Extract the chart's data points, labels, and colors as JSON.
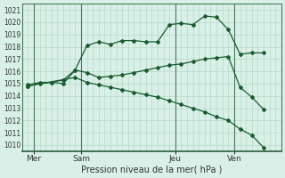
{
  "title": "Pression niveau de la mer( hPa )",
  "bg_color": "#d8f0e8",
  "grid_color": "#b8d8c8",
  "line_color": "#1a5c30",
  "ylim": [
    1009.5,
    1021.5
  ],
  "yticks": [
    1010,
    1011,
    1012,
    1013,
    1014,
    1015,
    1016,
    1017,
    1018,
    1019,
    1020,
    1021
  ],
  "day_labels": [
    "Mer",
    "Sam",
    "Jeu",
    "Ven"
  ],
  "total_x_pts": 22,
  "xlim": [
    0,
    22
  ],
  "line1_x": [
    0.5,
    1.5,
    2.5,
    3.5,
    4.5,
    5.5,
    6.5,
    7.5,
    8.5,
    9.5,
    10.5,
    11.5,
    12.5,
    13.5,
    14.5,
    15.5,
    16.5,
    17.5,
    18.5,
    19.5,
    20.5
  ],
  "line1_y": [
    1014.8,
    1015.0,
    1015.1,
    1015.0,
    1016.1,
    1018.1,
    1018.4,
    1018.2,
    1018.5,
    1018.5,
    1018.4,
    1018.4,
    1019.8,
    1019.9,
    1019.8,
    1020.5,
    1020.4,
    1019.4,
    1017.4,
    1017.5,
    1017.5
  ],
  "line2_x": [
    0.5,
    1.5,
    2.5,
    3.5,
    4.5,
    5.5,
    6.5,
    7.5,
    8.5,
    9.5,
    10.5,
    11.5,
    12.5,
    13.5,
    14.5,
    15.5,
    16.5,
    17.5,
    18.5,
    19.5,
    20.5
  ],
  "line2_y": [
    1014.9,
    1015.1,
    1015.1,
    1015.3,
    1016.1,
    1015.9,
    1015.5,
    1015.6,
    1015.7,
    1015.9,
    1016.1,
    1016.3,
    1016.5,
    1016.6,
    1016.8,
    1017.0,
    1017.1,
    1017.2,
    1014.7,
    1013.9,
    1012.9
  ],
  "line3_x": [
    0.5,
    4.5,
    5.5,
    6.5,
    7.5,
    8.5,
    9.5,
    10.5,
    11.5,
    12.5,
    13.5,
    14.5,
    15.5,
    16.5,
    17.5,
    18.5,
    19.5,
    20.5
  ],
  "line3_y": [
    1014.8,
    1015.5,
    1015.1,
    1014.9,
    1014.7,
    1014.5,
    1014.3,
    1014.1,
    1013.9,
    1013.6,
    1013.3,
    1013.0,
    1012.7,
    1012.3,
    1012.0,
    1011.3,
    1010.8,
    1009.8
  ],
  "vline_positions": [
    1,
    5,
    13,
    18
  ],
  "grid_minor_x_step": 0.5,
  "title_fontsize": 7,
  "ylabel_fontsize": 5.5,
  "xlabel_fontsize": 6.5
}
